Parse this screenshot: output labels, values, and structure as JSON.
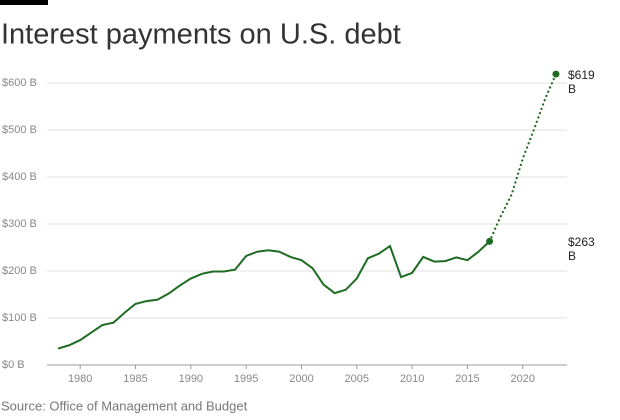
{
  "chart_data": {
    "type": "line",
    "title": "Interest payments on U.S. debt",
    "source": "Source: Office of Management and Budget",
    "series": [
      {
        "color": "#1e6b22",
        "style": "solid",
        "x": [
          1978,
          1979,
          1980,
          1981,
          1982,
          1983,
          1984,
          1985,
          1986,
          1987,
          1988,
          1989,
          1990,
          1991,
          1992,
          1993,
          1994,
          1995,
          1996,
          1997,
          1998,
          1999,
          2000,
          2001,
          2002,
          2003,
          2004,
          2005,
          2006,
          2007,
          2008,
          2009,
          2010,
          2011,
          2012,
          2013,
          2014,
          2015,
          2016,
          2017
        ],
        "values": [
          35,
          42,
          53,
          69,
          85,
          90,
          111,
          130,
          136,
          139,
          152,
          169,
          184,
          194,
          199,
          199,
          203,
          232,
          241,
          244,
          241,
          230,
          223,
          206,
          171,
          153,
          160,
          184,
          227,
          237,
          253,
          187,
          196,
          230,
          220,
          221,
          229,
          223,
          241,
          263
        ]
      },
      {
        "color": "#1e6b22",
        "style": "dotted",
        "x": [
          2017,
          2018,
          2019,
          2020,
          2021,
          2022,
          2023
        ],
        "values": [
          263,
          316,
          363,
          439,
          500,
          565,
          619
        ]
      }
    ],
    "annotations": [
      {
        "text": "$263 B"
      },
      {
        "text": "$619 B"
      }
    ],
    "xlim": [
      1977,
      2024
    ],
    "xticks": [
      1980,
      1985,
      1990,
      1995,
      2000,
      2005,
      2010,
      2015,
      2020
    ],
    "ylim": [
      0,
      620
    ],
    "yticks": [
      {
        "value": 0,
        "label": "$0 B"
      },
      {
        "value": 100,
        "label": "$100 B"
      },
      {
        "value": 200,
        "label": "$200 B"
      },
      {
        "value": 300,
        "label": "$300 B"
      },
      {
        "value": 400,
        "label": "$400 B"
      },
      {
        "value": 500,
        "label": "$500 B"
      },
      {
        "value": 600,
        "label": "$600 B"
      }
    ],
    "grid": true
  }
}
